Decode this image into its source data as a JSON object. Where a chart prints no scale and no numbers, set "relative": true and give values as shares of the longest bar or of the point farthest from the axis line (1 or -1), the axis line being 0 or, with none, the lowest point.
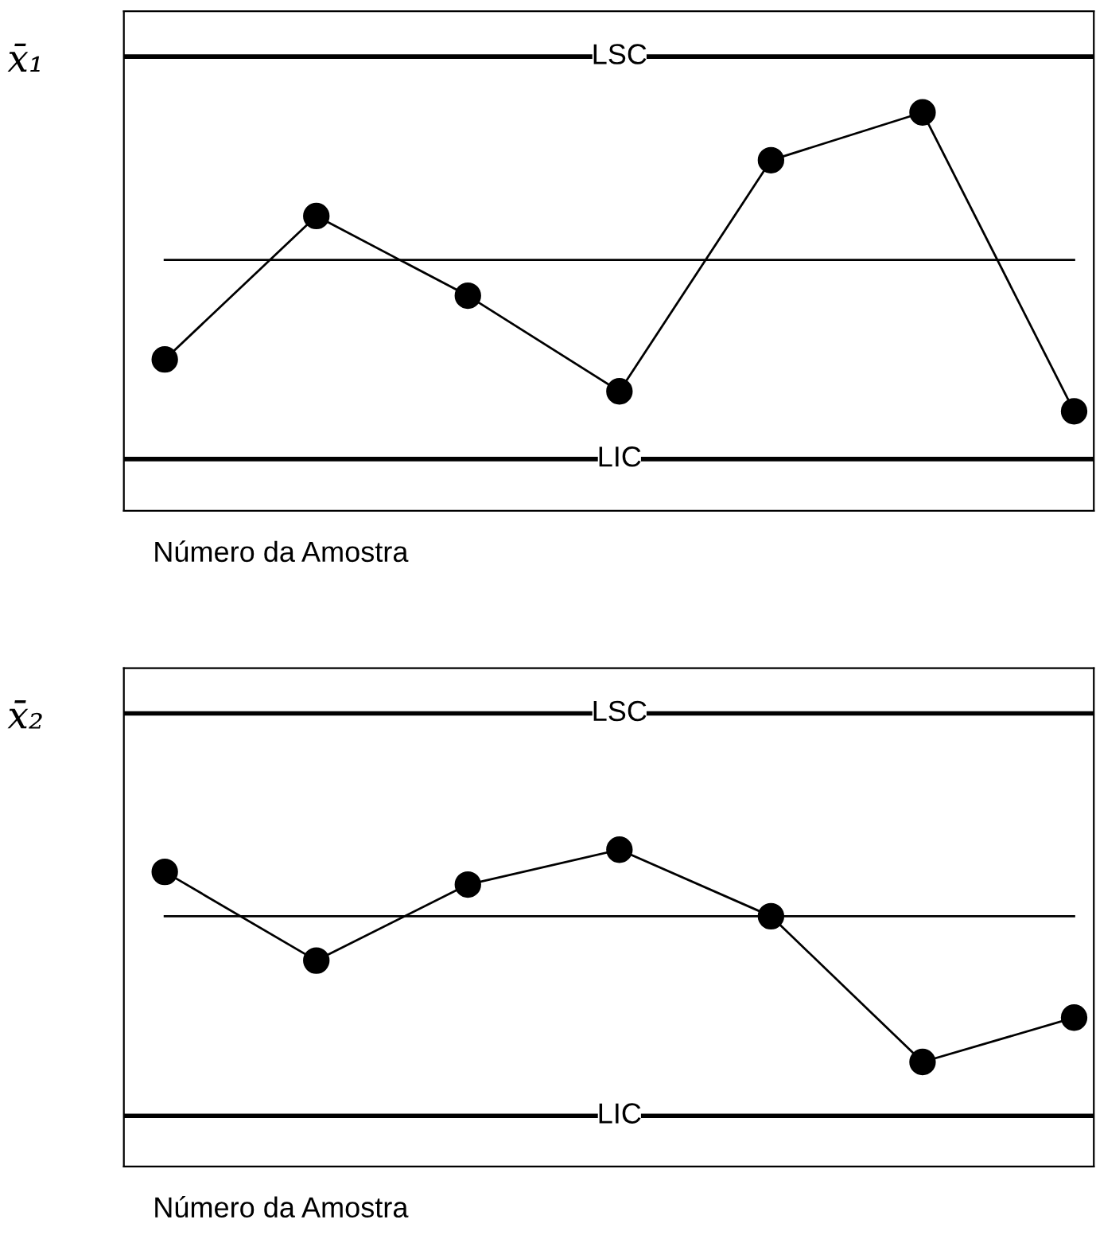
{
  "chart_data": [
    {
      "type": "line",
      "relative": true,
      "ylabel": "x̄₁",
      "xlabel": "Número da Amostra",
      "categories": [
        null,
        null,
        null,
        null,
        null,
        null,
        null
      ],
      "marker": "circle",
      "line_style": "solid",
      "legend": false,
      "tick_labels": false,
      "series": [
        {
          "color": "#000000",
          "values": [
            0.38,
            0.74,
            0.54,
            0.3,
            0.88,
            1.0,
            0.25
          ]
        }
      ],
      "ref_lines": [
        {
          "axis": "y",
          "value": 1.14,
          "label": "LSC",
          "color": "#000000"
        },
        {
          "axis": "y",
          "value": 0.63,
          "color": "#000000"
        },
        {
          "axis": "y",
          "value": 0.13,
          "label": "LIC",
          "color": "#000000"
        }
      ]
    },
    {
      "type": "line",
      "relative": true,
      "ylabel": "x̄₂",
      "xlabel": "Número da Amostra",
      "categories": [
        null,
        null,
        null,
        null,
        null,
        null,
        null
      ],
      "marker": "circle",
      "line_style": "solid",
      "legend": false,
      "tick_labels": false,
      "series": [
        {
          "color": "#000000",
          "values": [
            0.93,
            0.65,
            0.89,
            1.0,
            0.79,
            0.33,
            0.47
          ]
        }
      ],
      "ref_lines": [
        {
          "axis": "y",
          "value": 1.43,
          "label": "LSC",
          "color": "#000000"
        },
        {
          "axis": "y",
          "value": 0.79,
          "color": "#000000"
        },
        {
          "axis": "y",
          "value": 0.16,
          "label": "LIC",
          "color": "#000000"
        }
      ]
    }
  ]
}
